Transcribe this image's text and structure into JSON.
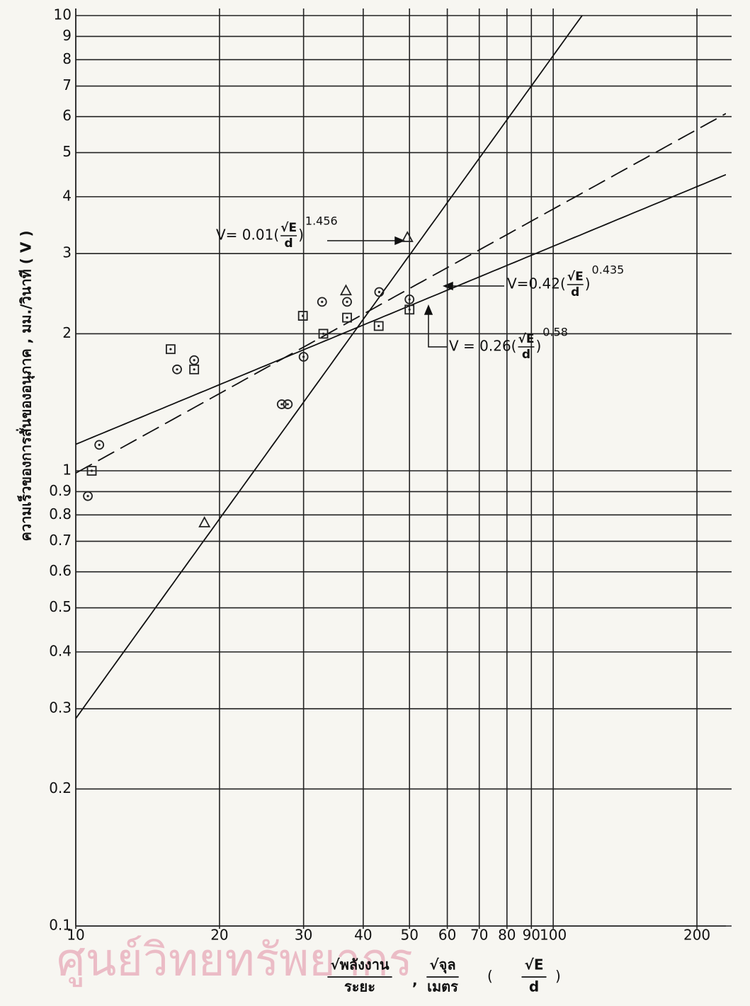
{
  "chart_data": {
    "type": "scatter",
    "log_x": true,
    "log_y": true,
    "grid": true,
    "xlim": [
      10,
      230
    ],
    "ylim": [
      0.1,
      10
    ],
    "xticks": [
      10,
      20,
      30,
      40,
      50,
      60,
      70,
      80,
      90,
      100,
      200
    ],
    "yticks": [
      0.1,
      0.2,
      0.3,
      0.4,
      0.5,
      0.6,
      0.7,
      0.8,
      0.9,
      1,
      2,
      3,
      4,
      5,
      6,
      7,
      8,
      9,
      10
    ],
    "ylabel": "ความเร็วของการสั่นของอนุภาค , มม./วินาที ( V )",
    "xlabel": {
      "num1": "√พลังงาน",
      "den1": "ระยะ",
      "sep": ",",
      "num2": "√จุล",
      "den2": "เมตร",
      "num3": "√E",
      "den3": "d"
    },
    "watermark": "ศูนย์วิทยทรัพยากร",
    "series": [
      {
        "marker": "circle",
        "color": "#222",
        "x": [
          10.6,
          11.2,
          16.3,
          17.7,
          30.0,
          32.8,
          37,
          43.2,
          50.0,
          27.0,
          27.8
        ],
        "values": [
          0.88,
          1.14,
          1.67,
          1.75,
          1.78,
          2.35,
          2.35,
          2.47,
          2.38,
          1.4,
          1.4
        ]
      },
      {
        "marker": "square",
        "color": "#222",
        "x": [
          10.8,
          15.8,
          17.7,
          29.9,
          33.0,
          37,
          43.1,
          50
        ],
        "values": [
          1.0,
          1.85,
          1.67,
          2.19,
          2.0,
          2.17,
          2.08,
          2.26
        ]
      },
      {
        "marker": "triangle",
        "color": "#222",
        "x": [
          18.6,
          36.8,
          49.5
        ],
        "values": [
          0.77,
          2.49,
          3.26
        ]
      }
    ],
    "fits": [
      {
        "a": 0.01,
        "b": 1.456,
        "dashed": false,
        "label": {
          "lhs": "V= 0.01(",
          "num": "√E",
          "den": "d",
          "rhs": ")",
          "exp": "1.456"
        }
      },
      {
        "a": 0.42,
        "b": 0.435,
        "dashed": false,
        "label": {
          "lhs": "V=0.42(",
          "num": "√E",
          "den": "d",
          "rhs": ")",
          "exp": "0.435"
        }
      },
      {
        "a": 0.26,
        "b": 0.58,
        "dashed": true,
        "label": {
          "lhs": "V = 0.26(",
          "num": "√E",
          "den": "d",
          "rhs": ")",
          "exp": "0.58"
        }
      }
    ]
  }
}
